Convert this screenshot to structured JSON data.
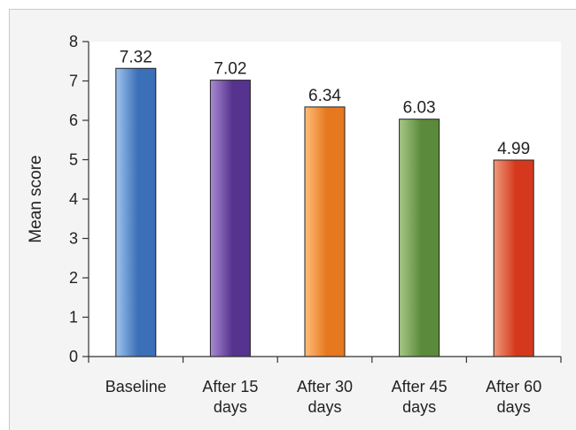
{
  "chart_data": {
    "type": "bar",
    "title": "",
    "xlabel": "",
    "ylabel": "Mean score",
    "ylim": [
      0,
      8
    ],
    "yticks": [
      0,
      1,
      2,
      3,
      4,
      5,
      6,
      7,
      8
    ],
    "grid": false,
    "categories": [
      [
        "Baseline"
      ],
      [
        "After 15",
        "days"
      ],
      [
        "After 30",
        "days"
      ],
      [
        "After 45",
        "days"
      ],
      [
        "After 60",
        "days"
      ]
    ],
    "values": [
      7.32,
      7.02,
      6.34,
      6.03,
      4.99
    ],
    "data_labels": [
      "7.32",
      "7.02",
      "6.34",
      "6.03",
      "4.99"
    ],
    "colors": [
      {
        "light": "#9fc4ee",
        "dark": "#3b6fb8"
      },
      {
        "light": "#a98bd2",
        "dark": "#56338f"
      },
      {
        "light": "#ffbd7a",
        "dark": "#e6781f"
      },
      {
        "light": "#a7c888",
        "dark": "#5b8a3a"
      },
      {
        "light": "#f09a7c",
        "dark": "#d5381d"
      }
    ]
  }
}
